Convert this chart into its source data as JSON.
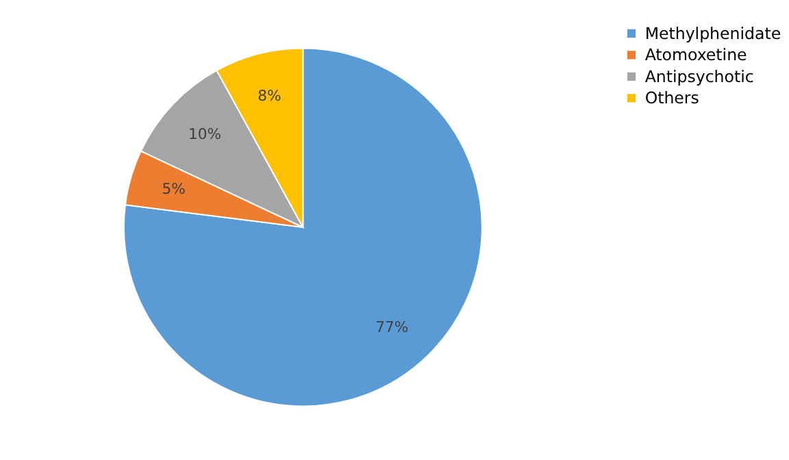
{
  "chart_data": {
    "type": "pie",
    "categories": [
      "Methylphenidate",
      "Atomoxetine",
      "Antipsychotic",
      "Others"
    ],
    "values": [
      77,
      5,
      10,
      8
    ],
    "value_labels": [
      "77%",
      "5%",
      "10%",
      "8%"
    ],
    "colors": [
      "#5b9bd5",
      "#ed7d31",
      "#a5a5a5",
      "#ffc000"
    ],
    "legend": "right"
  }
}
